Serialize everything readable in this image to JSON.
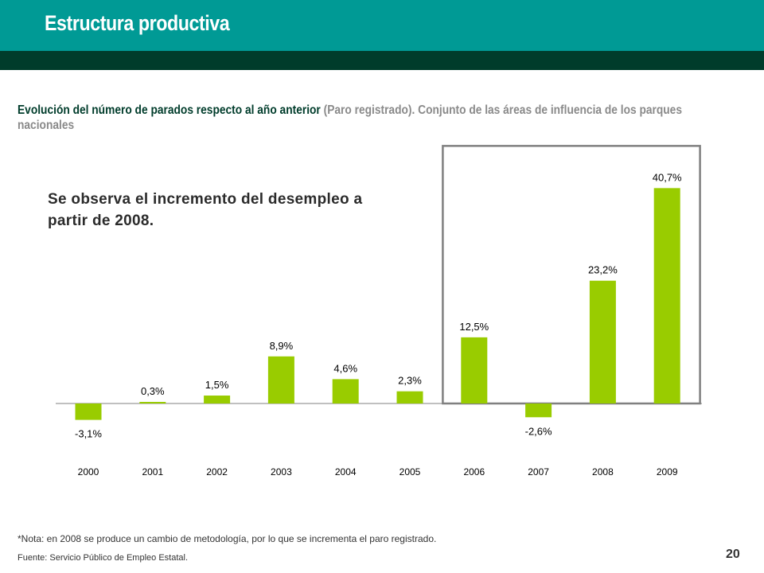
{
  "header": {
    "title": "Estructura productiva",
    "colors": {
      "band": "#009a95",
      "dark_band": "#003c2b"
    }
  },
  "subtitle": {
    "bold_part": "Evolución del número de parados respecto al año anterior",
    "grey_part": " (Paro registrado). Conjunto de las áreas de influencia de los parques nacionales"
  },
  "comment": "Se observa el incremento del desempleo a partir de 2008.",
  "chart_data": {
    "type": "bar",
    "categories": [
      "2000",
      "2001",
      "2002",
      "2003",
      "2004",
      "2005",
      "2006",
      "2007",
      "2008",
      "2009"
    ],
    "values": [
      -3.1,
      0.3,
      1.5,
      8.9,
      4.6,
      2.3,
      12.5,
      -2.6,
      23.2,
      40.7
    ],
    "data_labels": [
      "-3,1%",
      "0,3%",
      "1,5%",
      "8,9%",
      "4,6%",
      "2,3%",
      "12,5%",
      "-2,6%",
      "23,2%",
      "40,7%"
    ],
    "highlighted_categories": [
      "2006",
      "2007",
      "2008",
      "2009"
    ],
    "bar_color": "#99cc00",
    "highlight_box_color": "#808080",
    "ylim": [
      -5,
      45
    ],
    "grid": false,
    "title": "",
    "xlabel": "",
    "ylabel": ""
  },
  "footer": {
    "note": "*Nota: en 2008 se produce un cambio de metodología, por lo que se incrementa el paro registrado.",
    "source": "Fuente: Servicio Público de Empleo Estatal.",
    "page_number": "20"
  }
}
